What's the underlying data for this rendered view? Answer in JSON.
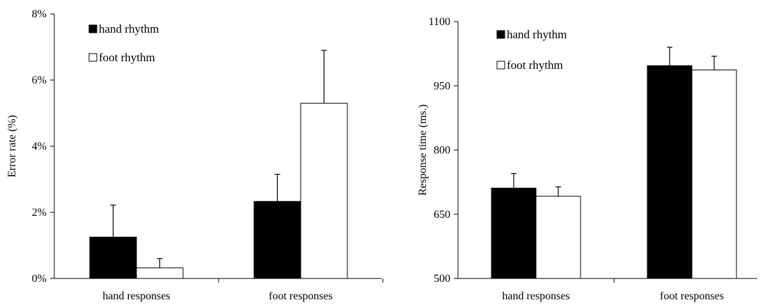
{
  "chart_data": [
    {
      "type": "bar",
      "title": "",
      "xlabel": "",
      "ylabel": "Error rate (%)",
      "ylim": [
        0,
        8
      ],
      "yticks": [
        "0%",
        "2%",
        "4%",
        "6%",
        "8%"
      ],
      "categories": [
        "hand responses",
        "foot responses"
      ],
      "legend_position": "top-left",
      "series": [
        {
          "name": "hand rhythm",
          "color": "#000000",
          "values": [
            1.25,
            2.33
          ],
          "errors": [
            0.97,
            0.82
          ]
        },
        {
          "name": "foot rhythm",
          "color": "#ffffff",
          "values": [
            0.32,
            5.3
          ],
          "errors": [
            0.28,
            1.6
          ]
        }
      ]
    },
    {
      "type": "bar",
      "title": "",
      "xlabel": "",
      "ylabel": "Response time (ms.)",
      "ylim": [
        500,
        1100
      ],
      "yticks": [
        "500",
        "650",
        "800",
        "950",
        "1100"
      ],
      "categories": [
        "hand responses",
        "foot responses"
      ],
      "legend_position": "top-left",
      "series": [
        {
          "name": "hand rhythm",
          "color": "#000000",
          "values": [
            711,
            997
          ],
          "errors": [
            34,
            43
          ]
        },
        {
          "name": "foot rhythm",
          "color": "#ffffff",
          "values": [
            692,
            987
          ],
          "errors": [
            22,
            32
          ]
        }
      ]
    }
  ]
}
